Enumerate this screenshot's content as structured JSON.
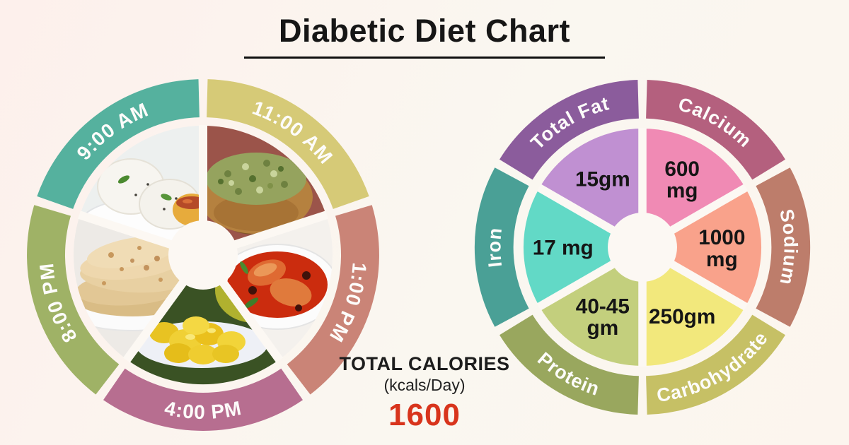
{
  "title": {
    "text": "Diabetic Diet Chart"
  },
  "meal_wheel": {
    "name": "Daily meal schedule wheel",
    "gap_color": "#fcf8f3",
    "segments": [
      {
        "time": "9:00 AM",
        "food": "idli-sambar",
        "ring_color": "#55b19e",
        "start": 288,
        "end": 360,
        "flip": false
      },
      {
        "time": "11:00 AM",
        "food": "sprouted-moong",
        "ring_color": "#d6ca77",
        "start": 0,
        "end": 72,
        "flip": false
      },
      {
        "time": "1:00 PM",
        "food": "fish-curry",
        "ring_color": "#ca8477",
        "start": 72,
        "end": 144,
        "flip": false
      },
      {
        "time": "4:00 PM",
        "food": "jackfruit",
        "ring_color": "#b76e90",
        "start": 144,
        "end": 216,
        "flip": true
      },
      {
        "time": "8:00 PM",
        "food": "roti",
        "ring_color": "#9fb266",
        "start": 216,
        "end": 288,
        "flip": false
      }
    ]
  },
  "nutrient_wheel": {
    "name": "Daily nutrient allowance wheel",
    "gap_color": "#fcf8f3",
    "segments": [
      {
        "label": "Calcium",
        "value": "600 mg",
        "lines": [
          "600",
          "mg"
        ],
        "ring_color": "#b4607e",
        "slice_color": "#f08ab4",
        "start": 0,
        "end": 60,
        "flip": false
      },
      {
        "label": "Sodium",
        "value": "1000 mg",
        "lines": [
          "1000",
          "mg"
        ],
        "ring_color": "#bd7d6b",
        "slice_color": "#f9a28b",
        "start": 60,
        "end": 120,
        "flip": false
      },
      {
        "label": "Carbohydrate",
        "value": "250gm",
        "lines": [
          "250gm"
        ],
        "ring_color": "#c6c065",
        "slice_color": "#f2e87c",
        "start": 120,
        "end": 180,
        "flip": true
      },
      {
        "label": "Protein",
        "value": "40-45 gm",
        "lines": [
          "40-45",
          "gm"
        ],
        "ring_color": "#99a75e",
        "slice_color": "#c3cf7d",
        "start": 180,
        "end": 240,
        "flip": true
      },
      {
        "label": "Iron",
        "value": "17 mg",
        "lines": [
          "17 mg"
        ],
        "ring_color": "#4aa096",
        "slice_color": "#62d9c6",
        "start": 240,
        "end": 300,
        "flip": false
      },
      {
        "label": "Total Fat",
        "value": "15gm",
        "lines": [
          "15gm"
        ],
        "ring_color": "#8b5c9c",
        "slice_color": "#c090d2",
        "start": 300,
        "end": 360,
        "flip": false
      }
    ]
  },
  "calories": {
    "label": "TOTAL CALORIES",
    "unit": "(kcals/Day)",
    "value": "1600",
    "value_color": "#d8341c"
  },
  "chart_data": [
    {
      "type": "pie",
      "title": "Diabetic diet meal schedule",
      "categories": [
        "9:00 AM",
        "11:00 AM",
        "1:00 PM",
        "4:00 PM",
        "8:00 PM"
      ],
      "values": [
        72,
        72,
        72,
        72,
        72
      ],
      "labels": [
        "idli with sambar",
        "sprouted moong bowl",
        "fish curry",
        "jackfruit bulbs",
        "roti / chapati"
      ],
      "legend_position": "outer-ring",
      "grid": false
    },
    {
      "type": "pie",
      "title": "Daily nutrient allowance",
      "categories": [
        "Calcium",
        "Sodium",
        "Carbohydrate",
        "Protein",
        "Iron",
        "Total Fat"
      ],
      "values": [
        600,
        1000,
        250,
        42.5,
        17,
        15
      ],
      "units": [
        "mg",
        "mg",
        "gm",
        "gm",
        "mg",
        "gm"
      ],
      "value_labels": [
        "600 mg",
        "1000 mg",
        "250gm",
        "40-45 gm",
        "17 mg",
        "15gm"
      ],
      "legend_position": "outer-ring",
      "annotation": "TOTAL CALORIES (kcals/Day) 1600"
    }
  ]
}
